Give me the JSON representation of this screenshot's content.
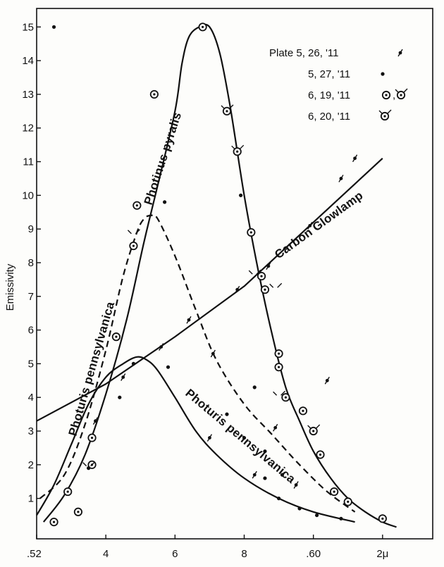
{
  "chart_data": {
    "type": "line",
    "ylabel": "Emissivity",
    "x_tick_labels": [
      ".52",
      "4",
      "6",
      "8",
      ".60",
      "2μ"
    ],
    "x_tick_values": [
      0.52,
      0.54,
      0.56,
      0.58,
      0.6,
      0.62
    ],
    "y_tick_labels": [
      "1",
      "2",
      "3",
      "4",
      "5",
      "6",
      "7",
      "8",
      "9",
      "10",
      "11",
      "12",
      "13",
      "14",
      "15"
    ],
    "xlim": [
      0.52,
      0.6345
    ],
    "ylim": [
      -0.2,
      15.55
    ],
    "grid": false,
    "legend": {
      "placement": "top-right",
      "entries": [
        {
          "label": "Plate 5, 26, '11",
          "marker_name": "dot-with-tick-marker"
        },
        {
          "label": "5, 27, '11",
          "marker_name": "dot-marker"
        },
        {
          "label": "6, 19, '11",
          "marker_name": "circle-dot-marker"
        },
        {
          "label": "6, 20, '11",
          "marker_name": "circle-dot-with-tick-marker"
        }
      ]
    },
    "series": [
      {
        "name": "Photinus pyralis",
        "style": "solid",
        "x": [
          0.522,
          0.528,
          0.534,
          0.54,
          0.546,
          0.551,
          0.555,
          0.56,
          0.562,
          0.564,
          0.567,
          0.57,
          0.573,
          0.576,
          0.58,
          0.584,
          0.588,
          0.592,
          0.596,
          0.6,
          0.605,
          0.61,
          0.615,
          0.62,
          0.624
        ],
        "y": [
          0.3,
          1.1,
          2.3,
          4.1,
          6.3,
          8.6,
          10.3,
          12.5,
          13.9,
          14.7,
          15.0,
          15.0,
          14.2,
          12.6,
          10.0,
          7.8,
          5.9,
          4.3,
          3.3,
          2.4,
          1.6,
          1.0,
          0.6,
          0.3,
          0.15
        ]
      },
      {
        "name": "Carbon Glowlamp",
        "style": "solid",
        "x": [
          0.52,
          0.54,
          0.56,
          0.58,
          0.6,
          0.62
        ],
        "y": [
          3.3,
          4.4,
          5.8,
          7.3,
          9.2,
          11.1
        ]
      },
      {
        "name": "Photuris pennsylvanica",
        "style": "dashed",
        "x": [
          0.521,
          0.528,
          0.534,
          0.54,
          0.545,
          0.549,
          0.551,
          0.553,
          0.555,
          0.56,
          0.566,
          0.572,
          0.58,
          0.588,
          0.596,
          0.604,
          0.612
        ],
        "y": [
          1.0,
          1.7,
          3.2,
          5.4,
          7.6,
          8.9,
          9.3,
          9.4,
          9.3,
          8.2,
          6.6,
          5.1,
          3.8,
          2.9,
          2.0,
          1.2,
          0.6
        ]
      },
      {
        "name": "Photuris pennsylvanica",
        "style": "solid",
        "x": [
          0.52,
          0.525,
          0.53,
          0.535,
          0.54,
          0.545,
          0.549,
          0.552,
          0.555,
          0.56,
          0.566,
          0.572,
          0.58,
          0.59,
          0.6,
          0.612
        ],
        "y": [
          0.5,
          1.4,
          2.6,
          3.8,
          4.6,
          5.0,
          5.2,
          5.1,
          4.8,
          4.0,
          3.0,
          2.3,
          1.6,
          1.0,
          0.6,
          0.3
        ]
      }
    ],
    "observations": [
      {
        "marker": "circle-dot",
        "points": [
          [
            0.525,
            0.3
          ],
          [
            0.529,
            1.2
          ],
          [
            0.536,
            2.8
          ],
          [
            0.543,
            5.8
          ],
          [
            0.548,
            8.5
          ],
          [
            0.549,
            9.7
          ],
          [
            0.554,
            13.0
          ],
          [
            0.568,
            15.0
          ],
          [
            0.575,
            12.5
          ],
          [
            0.578,
            11.3
          ],
          [
            0.582,
            8.9
          ],
          [
            0.585,
            7.6
          ],
          [
            0.586,
            7.2
          ],
          [
            0.59,
            5.3
          ],
          [
            0.59,
            4.9
          ],
          [
            0.592,
            4.0
          ],
          [
            0.597,
            3.6
          ],
          [
            0.6,
            3.0
          ],
          [
            0.602,
            2.3
          ],
          [
            0.606,
            1.2
          ],
          [
            0.61,
            0.9
          ],
          [
            0.62,
            0.4
          ],
          [
            0.532,
            0.6
          ],
          [
            0.536,
            2.0
          ]
        ]
      },
      {
        "marker": "dot",
        "points": [
          [
            0.525,
            15.0
          ],
          [
            0.535,
            1.9
          ],
          [
            0.548,
            5.0
          ],
          [
            0.557,
            9.8
          ],
          [
            0.558,
            4.9
          ],
          [
            0.579,
            10.0
          ],
          [
            0.583,
            4.3
          ],
          [
            0.586,
            1.6
          ],
          [
            0.59,
            1.0
          ],
          [
            0.596,
            0.7
          ],
          [
            0.601,
            0.5
          ],
          [
            0.608,
            0.4
          ],
          [
            0.544,
            4.0
          ],
          [
            0.575,
            3.5
          ],
          [
            0.58,
            2.8
          ],
          [
            0.586,
            2.4
          ],
          [
            0.591,
            1.7
          ]
        ]
      },
      {
        "marker": "dot-with-tick",
        "points": [
          [
            0.537,
            3.3
          ],
          [
            0.545,
            4.6
          ],
          [
            0.556,
            5.5
          ],
          [
            0.564,
            6.3
          ],
          [
            0.57,
            2.8
          ],
          [
            0.571,
            5.3
          ],
          [
            0.578,
            7.2
          ],
          [
            0.583,
            1.7
          ],
          [
            0.587,
            7.9
          ],
          [
            0.589,
            3.1
          ],
          [
            0.595,
            1.4
          ],
          [
            0.599,
            9.1
          ],
          [
            0.604,
            4.5
          ],
          [
            0.608,
            10.5
          ],
          [
            0.612,
            11.1
          ]
        ]
      },
      {
        "marker": "circle-dot-with-tick",
        "points": [
          [
            0.535,
            1.9
          ],
          [
            0.548,
            8.8
          ],
          [
            0.575,
            12.5
          ],
          [
            0.578,
            11.3
          ],
          [
            0.583,
            7.6
          ],
          [
            0.589,
            7.2
          ],
          [
            0.59,
            4.0
          ],
          [
            0.6,
            3.0
          ]
        ]
      }
    ],
    "annotations": [
      "Photinus pyralis",
      "Carbon Glowlamp",
      "Photuris pennsylvanica",
      "Photuris pennsylvanica"
    ]
  }
}
